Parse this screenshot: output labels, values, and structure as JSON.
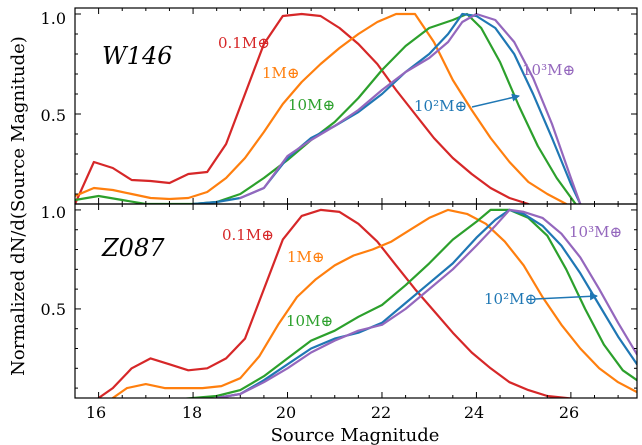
{
  "figure": {
    "ylabel": "Normalized dN/d(Source Magnitude)",
    "xlabel": "Source Magnitude",
    "xlim": [
      15.5,
      27.4
    ],
    "xticks": [
      "16",
      "18",
      "20",
      "22",
      "24",
      "26"
    ],
    "yticks": [
      "0.5",
      "1.0"
    ]
  },
  "chart_data": [
    {
      "type": "line",
      "panel_label": "W146",
      "xlabel": "Source Magnitude",
      "ylabel": "Normalized dN/d(Source Magnitude)",
      "ylim": [
        0.05,
        1.03
      ],
      "grid": false,
      "series": [
        {
          "name": "0.1M⊕",
          "color": "#d62728",
          "x": [
            15.5,
            15.9,
            16.3,
            16.7,
            17.1,
            17.5,
            17.9,
            18.3,
            18.7,
            19.1,
            19.5,
            19.9,
            20.3,
            20.7,
            21.1,
            21.5,
            21.9,
            22.3,
            22.7,
            23.1,
            23.5,
            23.9,
            24.3,
            24.7,
            25.1
          ],
          "y": [
            0.05,
            0.26,
            0.23,
            0.17,
            0.165,
            0.155,
            0.2,
            0.21,
            0.35,
            0.6,
            0.85,
            0.99,
            1.0,
            0.99,
            0.93,
            0.85,
            0.75,
            0.62,
            0.5,
            0.38,
            0.28,
            0.2,
            0.13,
            0.08,
            0.05
          ]
        },
        {
          "name": "1M⊕",
          "color": "#ff7f0e",
          "x": [
            15.5,
            15.9,
            16.3,
            16.7,
            17.1,
            17.5,
            17.9,
            18.3,
            18.7,
            19.1,
            19.5,
            19.9,
            20.3,
            20.7,
            21.1,
            21.5,
            21.9,
            22.3,
            22.7,
            23.1,
            23.5,
            23.9,
            24.3,
            24.7,
            25.1,
            25.5,
            25.9
          ],
          "y": [
            0.09,
            0.13,
            0.12,
            0.1,
            0.08,
            0.075,
            0.08,
            0.11,
            0.18,
            0.28,
            0.41,
            0.55,
            0.66,
            0.75,
            0.83,
            0.9,
            0.96,
            1.0,
            1.0,
            0.86,
            0.67,
            0.52,
            0.38,
            0.26,
            0.16,
            0.1,
            0.05
          ]
        },
        {
          "name": "10M⊕",
          "color": "#2ca02c",
          "x": [
            15.5,
            16.0,
            16.5,
            17.0,
            17.5,
            18.0,
            18.5,
            19.0,
            19.5,
            20.0,
            20.5,
            21.0,
            21.5,
            22.0,
            22.5,
            23.0,
            23.5,
            23.8,
            24.1,
            24.5,
            24.9,
            25.3,
            25.7,
            26.1
          ],
          "y": [
            0.07,
            0.09,
            0.07,
            0.05,
            0.05,
            0.05,
            0.06,
            0.1,
            0.18,
            0.27,
            0.37,
            0.46,
            0.58,
            0.72,
            0.84,
            0.93,
            0.97,
            1.0,
            0.93,
            0.76,
            0.54,
            0.34,
            0.18,
            0.05
          ]
        },
        {
          "name": "10²M⊕",
          "color": "#1f77b4",
          "x": [
            18.0,
            18.5,
            19.0,
            19.5,
            20.0,
            20.5,
            21.0,
            21.5,
            22.0,
            22.5,
            23.0,
            23.4,
            23.7,
            24.0,
            24.4,
            24.8,
            25.2,
            25.6,
            26.0,
            26.2
          ],
          "y": [
            0.05,
            0.06,
            0.08,
            0.13,
            0.28,
            0.38,
            0.44,
            0.51,
            0.6,
            0.71,
            0.8,
            0.9,
            1.0,
            0.99,
            0.93,
            0.8,
            0.6,
            0.38,
            0.15,
            0.05
          ]
        },
        {
          "name": "10³M⊕",
          "color": "#9467bd",
          "x": [
            19.0,
            19.5,
            20.0,
            20.5,
            21.0,
            21.5,
            22.0,
            22.5,
            23.0,
            23.4,
            23.7,
            24.0,
            24.4,
            24.8,
            25.2,
            25.6,
            26.0,
            26.2
          ],
          "y": [
            0.08,
            0.13,
            0.29,
            0.37,
            0.44,
            0.52,
            0.62,
            0.71,
            0.78,
            0.86,
            0.96,
            1.0,
            0.97,
            0.86,
            0.68,
            0.45,
            0.18,
            0.05
          ]
        }
      ]
    },
    {
      "type": "line",
      "panel_label": "Z087",
      "xlabel": "Source Magnitude",
      "ylabel": "Normalized dN/d(Source Magnitude)",
      "ylim": [
        0.05,
        1.03
      ],
      "grid": false,
      "series": [
        {
          "name": "0.1M⊕",
          "color": "#d62728",
          "x": [
            16.0,
            16.3,
            16.7,
            17.1,
            17.5,
            17.9,
            18.3,
            18.7,
            19.1,
            19.5,
            19.9,
            20.3,
            20.7,
            21.1,
            21.5,
            21.9,
            22.3,
            22.7,
            23.1,
            23.5,
            23.9,
            24.3,
            24.7,
            25.1,
            25.5,
            25.9,
            26.3
          ],
          "y": [
            0.05,
            0.1,
            0.2,
            0.25,
            0.22,
            0.19,
            0.2,
            0.25,
            0.35,
            0.6,
            0.85,
            0.97,
            1.0,
            0.99,
            0.93,
            0.84,
            0.72,
            0.6,
            0.49,
            0.38,
            0.28,
            0.2,
            0.13,
            0.09,
            0.06,
            0.05,
            0.04
          ]
        },
        {
          "name": "1M⊕",
          "color": "#ff7f0e",
          "x": [
            16.3,
            16.6,
            17.0,
            17.4,
            17.8,
            18.2,
            18.6,
            19.0,
            19.4,
            19.8,
            20.2,
            20.6,
            21.0,
            21.4,
            21.8,
            22.2,
            22.6,
            23.0,
            23.4,
            23.8,
            24.2,
            24.6,
            25.0,
            25.4,
            25.8,
            26.2,
            26.6,
            27.0,
            27.4
          ],
          "y": [
            0.05,
            0.1,
            0.12,
            0.1,
            0.1,
            0.1,
            0.11,
            0.15,
            0.26,
            0.42,
            0.56,
            0.65,
            0.72,
            0.77,
            0.8,
            0.84,
            0.9,
            0.96,
            1.0,
            0.98,
            0.93,
            0.84,
            0.72,
            0.56,
            0.42,
            0.3,
            0.2,
            0.13,
            0.08
          ]
        },
        {
          "name": "10M⊕",
          "color": "#2ca02c",
          "x": [
            17.5,
            18.0,
            18.5,
            19.0,
            19.5,
            20.0,
            20.5,
            21.0,
            21.5,
            22.0,
            22.5,
            23.0,
            23.5,
            24.0,
            24.3,
            24.7,
            25.1,
            25.5,
            25.9,
            26.3,
            26.7,
            27.1,
            27.4
          ],
          "y": [
            0.04,
            0.05,
            0.06,
            0.09,
            0.16,
            0.25,
            0.34,
            0.39,
            0.46,
            0.52,
            0.62,
            0.73,
            0.85,
            0.94,
            1.0,
            1.0,
            0.96,
            0.87,
            0.7,
            0.5,
            0.32,
            0.19,
            0.14
          ]
        },
        {
          "name": "10²M⊕",
          "color": "#1f77b4",
          "x": [
            18.5,
            19.0,
            19.5,
            20.0,
            20.5,
            21.0,
            21.5,
            22.0,
            22.5,
            23.0,
            23.5,
            24.0,
            24.4,
            24.7,
            25.0,
            25.4,
            25.8,
            26.2,
            26.6,
            27.0,
            27.4
          ],
          "y": [
            0.05,
            0.07,
            0.14,
            0.22,
            0.3,
            0.35,
            0.38,
            0.43,
            0.53,
            0.63,
            0.73,
            0.86,
            0.95,
            1.0,
            0.98,
            0.92,
            0.82,
            0.68,
            0.52,
            0.36,
            0.22
          ]
        },
        {
          "name": "10³M⊕",
          "color": "#9467bd",
          "x": [
            18.5,
            19.0,
            19.5,
            20.0,
            20.5,
            21.0,
            21.5,
            22.0,
            22.5,
            23.0,
            23.5,
            24.0,
            24.4,
            24.7,
            25.0,
            25.4,
            25.8,
            26.2,
            26.6,
            27.0,
            27.4
          ],
          "y": [
            0.05,
            0.07,
            0.13,
            0.2,
            0.28,
            0.34,
            0.39,
            0.42,
            0.5,
            0.6,
            0.7,
            0.82,
            0.92,
            1.0,
            0.99,
            0.96,
            0.88,
            0.76,
            0.6,
            0.43,
            0.27
          ]
        }
      ]
    }
  ]
}
